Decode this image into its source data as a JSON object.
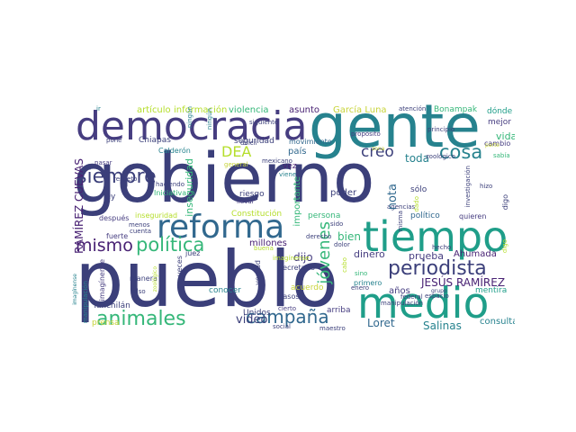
{
  "colors": {
    "navy": "#3b3f7a",
    "indigo": "#463d80",
    "purple": "#482173",
    "teal": "#26828e",
    "blue": "#31688e",
    "green": "#35b779",
    "lime": "#6ece58",
    "yellow": "#b5de2b",
    "ochre": "#c8d43a",
    "seagreen": "#1f9e89"
  },
  "words": [
    "gobierno",
    "pueblo",
    "gente",
    "democracia",
    "medio",
    "tiempo",
    "reforma",
    "periodista",
    "política",
    "jóvenes",
    "siempre",
    "mismo",
    "animales",
    "campaña",
    "cosa",
    "creo",
    "DEA",
    "RAMÍREZ CUEVAS",
    "JESÚS RAMÍREZ",
    "video",
    "Loret",
    "Salinas",
    "país",
    "toda",
    "nota",
    "bien",
    "dinero",
    "prueba",
    "dijo",
    "Ahumada",
    "Maderos",
    "vida",
    "artículo",
    "información",
    "violencia",
    "asunto",
    "García Luna",
    "Bonampak",
    "dónde",
    "mejor",
    "cambio",
    "seguridad",
    "movimiento",
    "Calderón",
    "vez",
    "poder",
    "sólo",
    "político",
    "quieren",
    "millones",
    "persona",
    "importante",
    "inseguridad",
    "Constitución",
    "Iniciativa",
    "ley",
    "haciendo",
    "riesgo",
    "llevar",
    "después",
    "fuerte",
    "juez",
    "conocer",
    "Unidos",
    "Yaxchilán",
    "prensa",
    "manera",
    "falso",
    "verdad",
    "secretario",
    "acuerdo",
    "años",
    "mentira",
    "consulta",
    "arriba",
    "primero",
    "casos",
    "social",
    "maestro",
    "cierto",
    "veces",
    "imagínense",
    "manipulación",
    "zoológico",
    "parte",
    "propósito",
    "atención",
    "ir",
    "pone",
    "pasar",
    "respeto",
    "menos",
    "cuenta",
    "general",
    "viene",
    "buena",
    "sido",
    "derecho",
    "dolor",
    "agencias",
    "misma",
    "espacio",
    "federal",
    "grupo",
    "hecho",
    "investigación",
    "dado",
    "hizo",
    "digo",
    "sabía",
    "principio",
    "siguiente",
    "ningún",
    "mexicano",
    "enero",
    "sino",
    "cabo",
    "zona",
    "difícil",
    "Chiapas",
    "problema",
    "hablar",
    "dato",
    "fiscalía",
    "mandado",
    "hoy",
    "Madero"
  ]
}
